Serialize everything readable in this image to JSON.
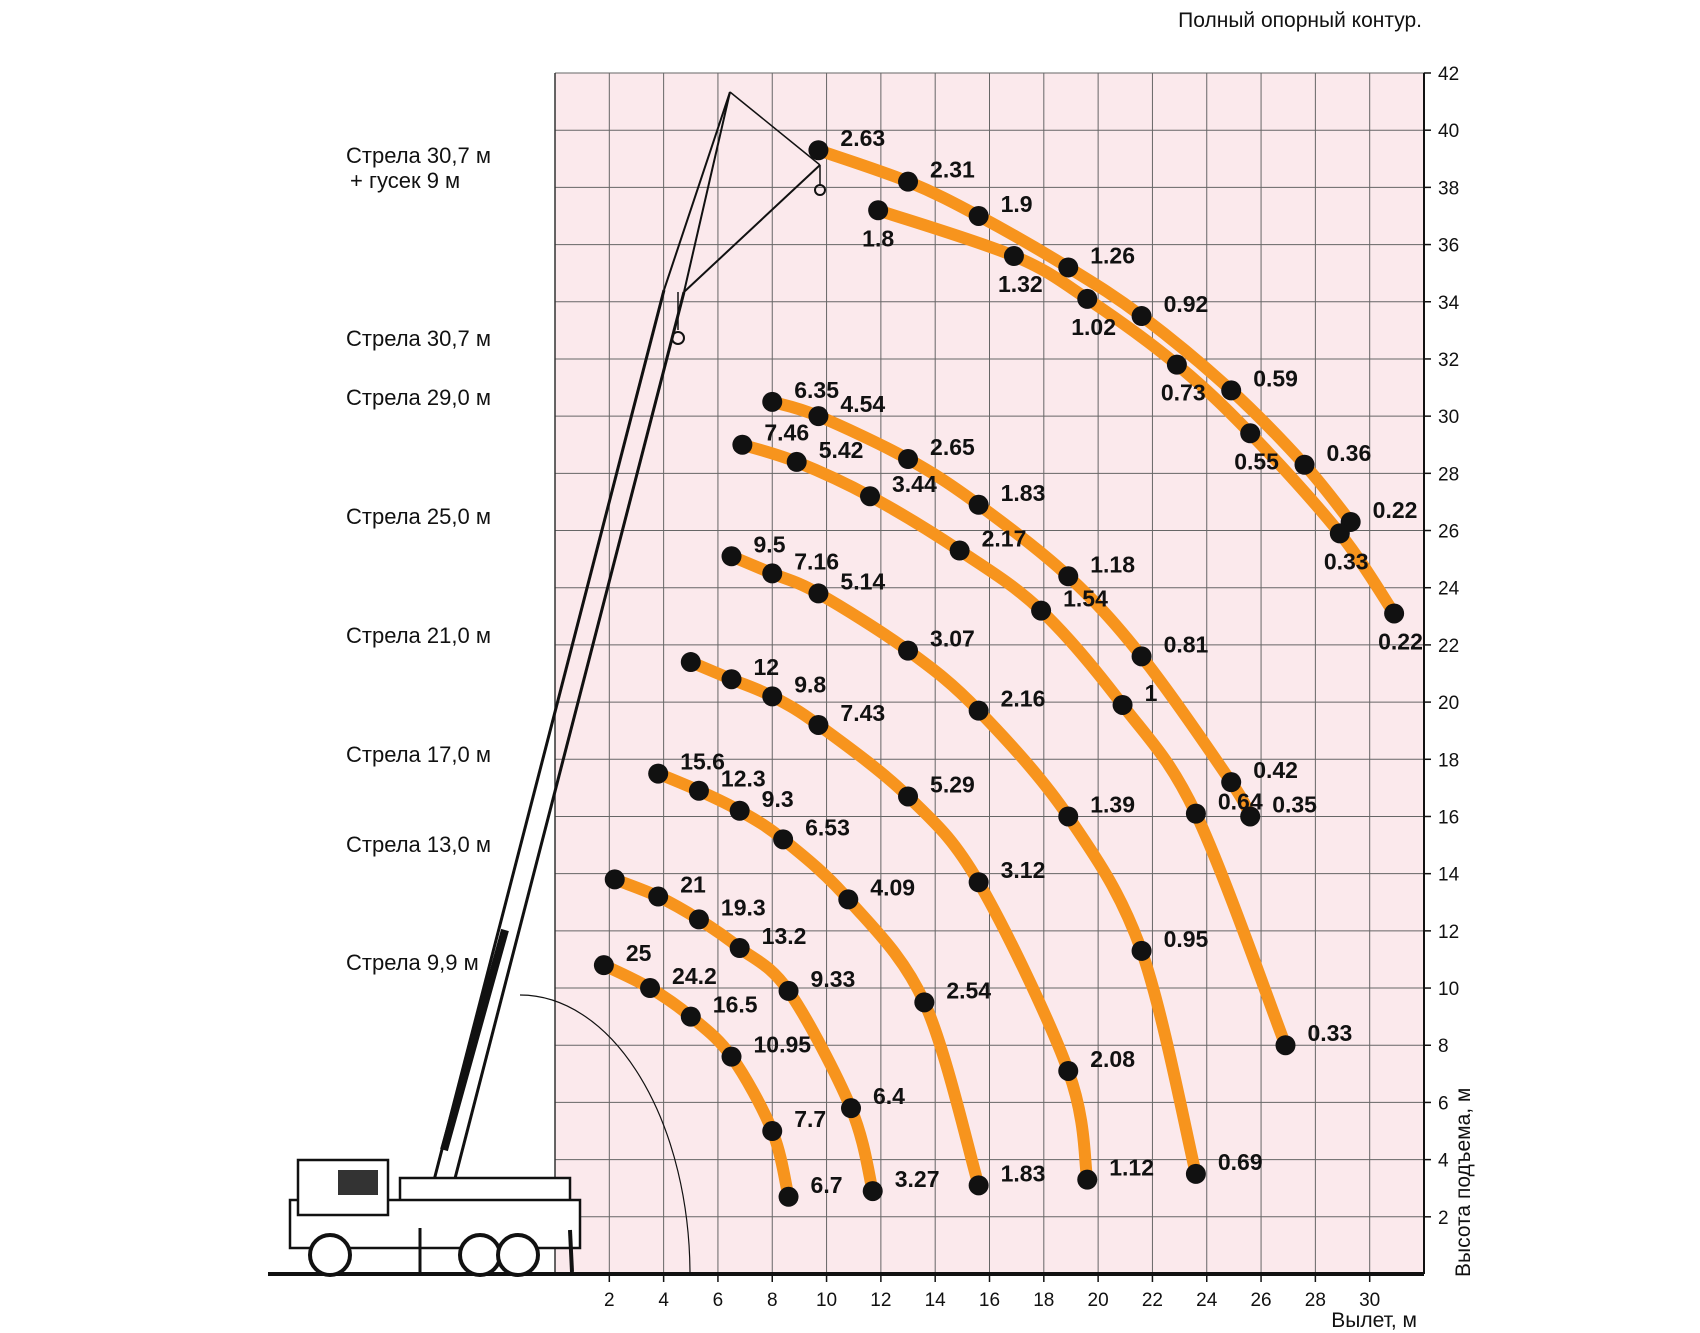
{
  "chart_data": {
    "type": "line",
    "title": "Полный опорный контур.",
    "xlabel": "Вылет, м",
    "ylabel": "Высота подъема, м",
    "xlim": [
      0,
      32
    ],
    "ylim": [
      0,
      42
    ],
    "x_ticks": [
      2,
      4,
      6,
      8,
      10,
      12,
      14,
      16,
      18,
      20,
      22,
      24,
      26,
      28,
      30
    ],
    "y_ticks": [
      2,
      4,
      6,
      8,
      10,
      12,
      14,
      16,
      18,
      20,
      22,
      24,
      26,
      28,
      30,
      32,
      34,
      36,
      38,
      40,
      42
    ],
    "grid": true,
    "colors": {
      "curve": "#f7941d",
      "point": "#111111",
      "grid": "#666666",
      "background": "#fbe9ec"
    },
    "series": [
      {
        "name": "Стрела 9,9 м",
        "label_y": 10.5,
        "points": [
          {
            "x": 1.8,
            "y": 10.8,
            "load": "25"
          },
          {
            "x": 3.5,
            "y": 10.0,
            "load": "24.2"
          },
          {
            "x": 5.0,
            "y": 9.0,
            "load": "16.5"
          },
          {
            "x": 6.5,
            "y": 7.6,
            "load": "10.95"
          },
          {
            "x": 8.0,
            "y": 5.0,
            "load": "7.7"
          },
          {
            "x": 8.6,
            "y": 2.7,
            "load": "6.7"
          }
        ]
      },
      {
        "name": "Стрела 13,0 м",
        "label_y": 14.7,
        "points": [
          {
            "x": 2.2,
            "y": 13.8
          },
          {
            "x": 3.8,
            "y": 13.2,
            "load": "21"
          },
          {
            "x": 5.3,
            "y": 12.4,
            "load": "19.3"
          },
          {
            "x": 6.8,
            "y": 11.4,
            "load": "13.2"
          },
          {
            "x": 8.6,
            "y": 9.9,
            "load": "9.33"
          },
          {
            "x": 10.9,
            "y": 5.8,
            "load": "6.4"
          },
          {
            "x": 11.7,
            "y": 2.9,
            "load": "3.27"
          }
        ]
      },
      {
        "name": "Стрела 17,0 м",
        "label_y": 17.8,
        "points": [
          {
            "x": 3.8,
            "y": 17.5,
            "load": "15.6"
          },
          {
            "x": 5.3,
            "y": 16.9,
            "load": "12.3"
          },
          {
            "x": 6.8,
            "y": 16.2,
            "load": "9.3"
          },
          {
            "x": 8.4,
            "y": 15.2,
            "load": "6.53"
          },
          {
            "x": 10.8,
            "y": 13.1,
            "load": "4.09"
          },
          {
            "x": 13.6,
            "y": 9.5,
            "load": "2.54"
          },
          {
            "x": 15.6,
            "y": 3.1,
            "load": "1.83"
          }
        ]
      },
      {
        "name": "Стрела 21,0 м",
        "label_y": 22.0,
        "points": [
          {
            "x": 5.0,
            "y": 21.4
          },
          {
            "x": 6.5,
            "y": 20.8,
            "load": "12"
          },
          {
            "x": 8.0,
            "y": 20.2,
            "load": "9.8"
          },
          {
            "x": 9.7,
            "y": 19.2,
            "load": "7.43"
          },
          {
            "x": 13.0,
            "y": 16.7,
            "load": "5.29"
          },
          {
            "x": 15.6,
            "y": 13.7,
            "load": "3.12"
          },
          {
            "x": 18.9,
            "y": 7.1,
            "load": "2.08"
          },
          {
            "x": 19.6,
            "y": 3.3,
            "load": "1.12"
          }
        ]
      },
      {
        "name": "Стрела 25,0 м",
        "label_y": 26.1,
        "points": [
          {
            "x": 6.5,
            "y": 25.1,
            "load": "9.5"
          },
          {
            "x": 8.0,
            "y": 24.5,
            "load": "7.16"
          },
          {
            "x": 9.7,
            "y": 23.8,
            "load": "5.14"
          },
          {
            "x": 13.0,
            "y": 21.8,
            "load": "3.07"
          },
          {
            "x": 15.6,
            "y": 19.7,
            "load": "2.16"
          },
          {
            "x": 18.9,
            "y": 16.0,
            "load": "1.39"
          },
          {
            "x": 21.6,
            "y": 11.3,
            "load": "0.95"
          },
          {
            "x": 23.6,
            "y": 3.5,
            "load": "0.69"
          }
        ]
      },
      {
        "name": "Стрела 29,0 м",
        "label_y": 30.4,
        "points": [
          {
            "x": 6.9,
            "y": 29.0,
            "load": "7.46"
          },
          {
            "x": 8.9,
            "y": 28.4,
            "load": "5.42"
          },
          {
            "x": 11.6,
            "y": 27.2,
            "load": "3.44"
          },
          {
            "x": 14.9,
            "y": 25.3,
            "load": "2.17"
          },
          {
            "x": 17.9,
            "y": 23.2,
            "load": "1.54"
          },
          {
            "x": 20.9,
            "y": 19.9,
            "load": "1"
          },
          {
            "x": 23.6,
            "y": 16.1,
            "load": "0.64"
          },
          {
            "x": 26.9,
            "y": 8.0,
            "load": "0.33"
          }
        ]
      },
      {
        "name": "Стрела 30,7 м",
        "label_y": 32.5,
        "points": [
          {
            "x": 8.0,
            "y": 30.5,
            "load": "6.35"
          },
          {
            "x": 9.7,
            "y": 30.0,
            "load": "4.54"
          },
          {
            "x": 13.0,
            "y": 28.5,
            "load": "2.65"
          },
          {
            "x": 15.6,
            "y": 26.9,
            "load": "1.83"
          },
          {
            "x": 18.9,
            "y": 24.4,
            "load": "1.18"
          },
          {
            "x": 21.6,
            "y": 21.6,
            "load": "0.81"
          },
          {
            "x": 24.9,
            "y": 17.2,
            "load": "0.42"
          },
          {
            "x": 25.6,
            "y": 16.0,
            "load": "0.35"
          }
        ]
      },
      {
        "name": "Стрела 30,7 м + гусек 9 м",
        "label_y": 38.9,
        "points": [
          {
            "x": 9.7,
            "y": 39.3,
            "load": "2.63"
          },
          {
            "x": 13.0,
            "y": 38.2,
            "load": "2.31"
          },
          {
            "x": 15.6,
            "y": 37.0,
            "load": "1.9"
          },
          {
            "x": 18.9,
            "y": 35.2,
            "load": "1.26"
          },
          {
            "x": 21.6,
            "y": 33.5,
            "load": "0.92"
          },
          {
            "x": 24.9,
            "y": 30.9,
            "load": "0.59"
          },
          {
            "x": 27.6,
            "y": 28.3,
            "load": "0.36"
          },
          {
            "x": 29.3,
            "y": 26.3,
            "load": "0.22"
          }
        ]
      },
      {
        "name": "Стрела 30,7 м + гусек 9 м (2)",
        "label_y": 0,
        "points": [
          {
            "x": 11.9,
            "y": 37.2,
            "load": "1.8"
          },
          {
            "x": 16.9,
            "y": 35.6,
            "load": "1.32"
          },
          {
            "x": 19.6,
            "y": 34.1,
            "load": "1.02"
          },
          {
            "x": 22.9,
            "y": 31.8,
            "load": "0.73"
          },
          {
            "x": 25.6,
            "y": 29.4,
            "load": "0.55"
          },
          {
            "x": 28.9,
            "y": 25.9,
            "load": "0.33"
          },
          {
            "x": 30.9,
            "y": 23.1,
            "load": "0.22"
          }
        ]
      }
    ]
  },
  "boom_labels": {
    "b99": "Стрела 9,9 м",
    "b130": "Стрела 13,0 м",
    "b170": "Стрела 17,0 м",
    "b210": "Стрела 21,0 м",
    "b250": "Стрела 25,0 м",
    "b290": "Стрела 29,0 м",
    "b307": "Стрела 30,7 м",
    "b307j1": "Стрела 30,7 м",
    "b307j2": "+ гусек 9 м"
  }
}
